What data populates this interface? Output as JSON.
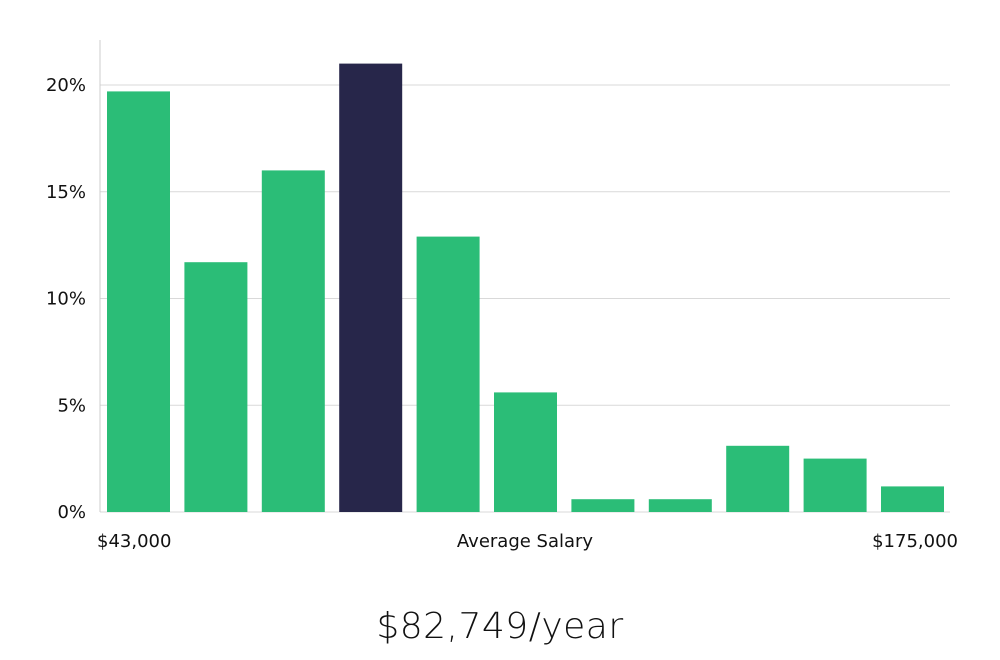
{
  "chart_data": {
    "type": "bar",
    "values": [
      19.7,
      11.7,
      16.0,
      21.0,
      12.9,
      5.6,
      0.6,
      0.6,
      3.1,
      2.5,
      1.2
    ],
    "highlight_index": 3,
    "ylim": [
      0,
      22
    ],
    "yticks": [
      0,
      5,
      10,
      15,
      20
    ],
    "ytick_format": "%",
    "grid": true,
    "x_labels": {
      "left": "$43,000",
      "center": "Average Salary",
      "right": "$175,000"
    },
    "colors": {
      "bar": "#2bbd77",
      "highlight": "#27264a",
      "grid": "#d9d9d9",
      "axis": "#cccccc"
    }
  },
  "headline": "$82,749/year"
}
